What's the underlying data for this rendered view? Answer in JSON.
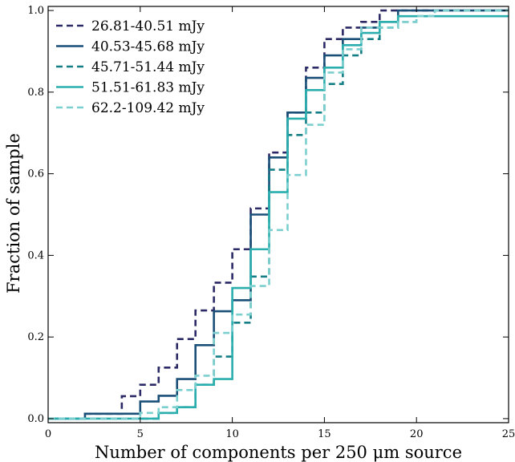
{
  "chart_data": {
    "type": "line",
    "step": true,
    "title": "",
    "xlabel": "Number of components per 250 μm source",
    "ylabel": "Fraction of sample",
    "xlim": [
      0,
      25
    ],
    "ylim": [
      -0.01,
      1.01
    ],
    "x_ticks": [
      0,
      5,
      10,
      15,
      20,
      25
    ],
    "y_ticks": [
      0.0,
      0.2,
      0.4,
      0.6,
      0.8,
      1.0
    ],
    "x_tick_labels": [
      "0",
      "5",
      "10",
      "15",
      "20",
      "25"
    ],
    "y_tick_labels": [
      "0.0",
      "0.2",
      "0.4",
      "0.6",
      "0.8",
      "1.0"
    ],
    "legend_position": "top-left",
    "grid": false,
    "series": [
      {
        "name": "26.81-40.51 mJy",
        "color": "#2b2a66",
        "dash": true,
        "x": [
          0,
          1,
          2,
          3,
          4,
          5,
          6,
          7,
          8,
          9,
          10,
          11,
          12,
          13,
          14,
          15,
          16,
          17,
          18,
          19,
          20,
          21,
          22,
          23,
          24,
          25
        ],
        "y": [
          0.0,
          0.0,
          0.012,
          0.012,
          0.055,
          0.083,
          0.125,
          0.195,
          0.265,
          0.333,
          0.415,
          0.515,
          0.652,
          0.75,
          0.86,
          0.93,
          0.958,
          0.972,
          1.0,
          1.0,
          1.0,
          1.0,
          1.0,
          1.0,
          1.0,
          1.0
        ]
      },
      {
        "name": "40.53-45.68 mJy",
        "color": "#1a4f78",
        "dash": false,
        "x": [
          0,
          1,
          2,
          3,
          4,
          5,
          6,
          7,
          8,
          9,
          10,
          11,
          12,
          13,
          14,
          15,
          16,
          17,
          18,
          19,
          20,
          21,
          22,
          23,
          24,
          25
        ],
        "y": [
          0.0,
          0.0,
          0.012,
          0.012,
          0.012,
          0.042,
          0.056,
          0.097,
          0.18,
          0.263,
          0.29,
          0.5,
          0.64,
          0.75,
          0.835,
          0.89,
          0.93,
          0.958,
          0.972,
          1.0,
          1.0,
          1.0,
          1.0,
          1.0,
          1.0,
          1.0
        ]
      },
      {
        "name": "45.71-51.44 mJy",
        "color": "#137e86",
        "dash": true,
        "x": [
          0,
          1,
          2,
          3,
          4,
          5,
          6,
          7,
          8,
          9,
          10,
          11,
          12,
          13,
          14,
          15,
          16,
          17,
          18,
          19,
          20,
          21,
          22,
          23,
          24,
          25
        ],
        "y": [
          0.0,
          0.0,
          0.0,
          0.0,
          0.0,
          0.0,
          0.014,
          0.028,
          0.083,
          0.152,
          0.235,
          0.348,
          0.61,
          0.695,
          0.75,
          0.82,
          0.89,
          0.93,
          0.958,
          0.972,
          0.986,
          1.0,
          1.0,
          1.0,
          1.0,
          1.0
        ]
      },
      {
        "name": "51.51-61.83 mJy",
        "color": "#2aaeae",
        "dash": false,
        "x": [
          0,
          1,
          2,
          3,
          4,
          5,
          6,
          7,
          8,
          9,
          10,
          11,
          12,
          13,
          14,
          15,
          16,
          17,
          18,
          19,
          20,
          21,
          22,
          23,
          24,
          25
        ],
        "y": [
          0.0,
          0.0,
          0.0,
          0.0,
          0.0,
          0.0,
          0.014,
          0.028,
          0.083,
          0.097,
          0.32,
          0.415,
          0.555,
          0.735,
          0.805,
          0.86,
          0.915,
          0.945,
          0.972,
          0.986,
          0.986,
          0.986,
          0.986,
          0.986,
          0.986,
          0.986
        ]
      },
      {
        "name": "62.2-109.42 mJy",
        "color": "#7ccfcf",
        "dash": true,
        "x": [
          0,
          1,
          2,
          3,
          4,
          5,
          6,
          7,
          8,
          9,
          10,
          11,
          12,
          13,
          14,
          15,
          16,
          17,
          18,
          19,
          20,
          21,
          22,
          23,
          24,
          25
        ],
        "y": [
          0.0,
          0.0,
          0.0,
          0.0,
          0.0,
          0.014,
          0.028,
          0.07,
          0.105,
          0.21,
          0.255,
          0.325,
          0.462,
          0.597,
          0.72,
          0.848,
          0.905,
          0.958,
          0.958,
          0.972,
          0.986,
          1.0,
          1.0,
          1.0,
          1.0,
          1.0
        ]
      }
    ]
  }
}
